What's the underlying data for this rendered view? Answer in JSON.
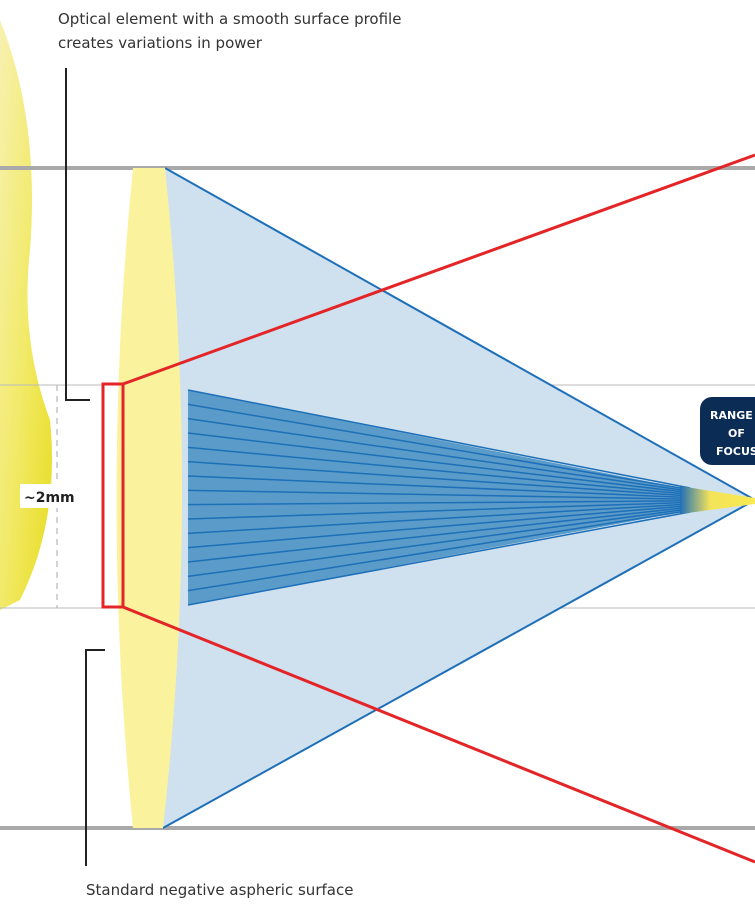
{
  "annotations": {
    "top": [
      "Optical element with a smooth surface profile",
      "creates variations in power"
    ],
    "bottom": "Standard negative aspheric surface",
    "size": "~2mm"
  },
  "badge": [
    "RANGE",
    "OF",
    "FOCUS"
  ]
}
